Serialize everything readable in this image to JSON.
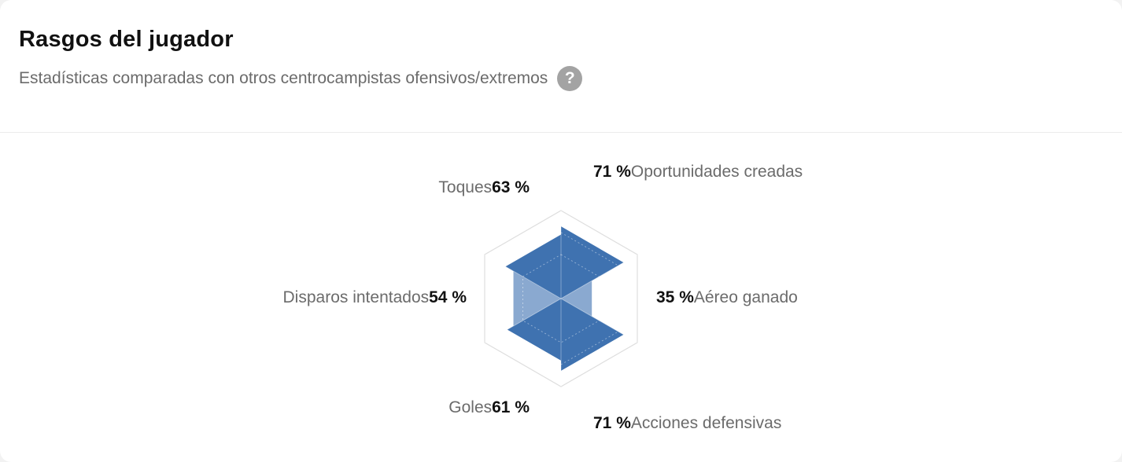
{
  "header": {
    "title": "Rasgos del jugador",
    "subtitle": "Estadísticas comparadas con otros centrocampistas ofensivos/extremos",
    "help_icon": "question-icon",
    "help_glyph": "?"
  },
  "colors": {
    "fill": "#3f72b0",
    "fill_light": "#8aa9d0",
    "grid": "#dedede",
    "label": "#6b6b6b",
    "value": "#111111"
  },
  "chart_data": {
    "type": "radar",
    "axes": [
      {
        "name": "Oportunidades creadas",
        "display": "71 %",
        "value": 71
      },
      {
        "name": "Aéreo ganado",
        "display": "35 %",
        "value": 35
      },
      {
        "name": "Acciones defensivas",
        "display": "71 %",
        "value": 71
      },
      {
        "name": "Goles",
        "display": "61 %",
        "value": 61
      },
      {
        "name": "Disparos intentados",
        "display": "54 %",
        "value": 54
      },
      {
        "name": "Toques",
        "display": "63 %",
        "value": 63
      }
    ],
    "range": [
      0,
      100
    ],
    "grid": true
  }
}
